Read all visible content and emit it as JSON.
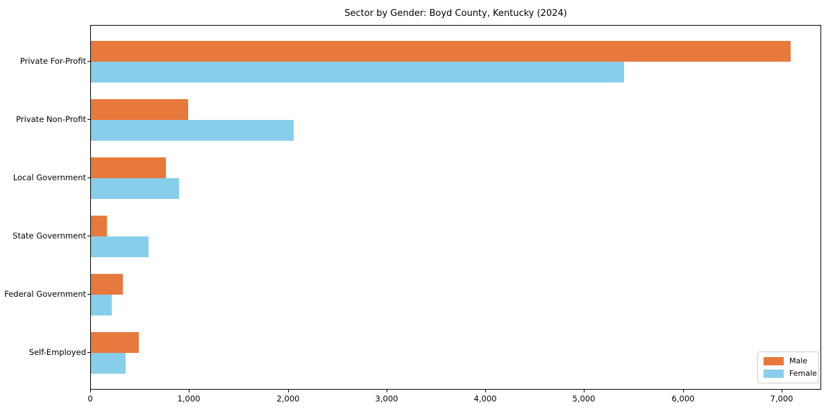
{
  "chart_data": {
    "type": "bar",
    "orientation": "horizontal",
    "title": "Sector by Gender: Boyd County, Kentucky (2024)",
    "categories": [
      "Private For-Profit",
      "Private Non-Profit",
      "Local Government",
      "State Government",
      "Federal Government",
      "Self-Employed"
    ],
    "series": [
      {
        "name": "Male",
        "color": "#e8793d",
        "values": [
          7085,
          985,
          760,
          160,
          325,
          485
        ]
      },
      {
        "name": "Female",
        "color": "#87ceeb",
        "values": [
          5395,
          2050,
          890,
          585,
          210,
          350
        ]
      }
    ],
    "xlabel": "",
    "ylabel": "",
    "xlim": [
      0,
      7400
    ],
    "xticks": {
      "values": [
        0,
        1000,
        2000,
        3000,
        4000,
        5000,
        6000,
        7000
      ],
      "labels": [
        "0",
        "1,000",
        "2,000",
        "3,000",
        "4,000",
        "5,000",
        "6,000",
        "7,000"
      ]
    },
    "grid": false,
    "legend": {
      "position": "lower right",
      "entries": [
        "Male",
        "Female"
      ]
    }
  }
}
